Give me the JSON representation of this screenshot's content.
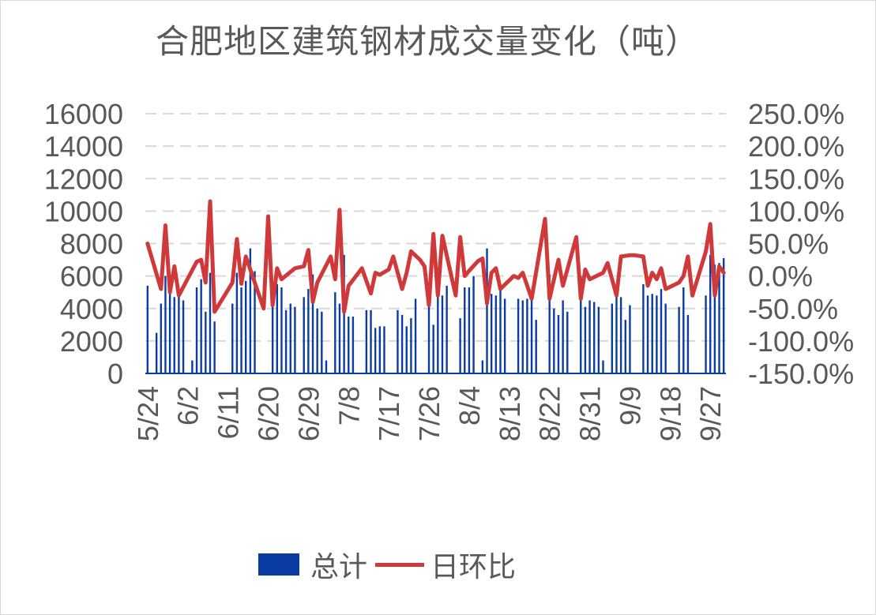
{
  "chart_data": {
    "type": "bar+line",
    "title": "合肥地区建筑钢材成交量变化（吨）",
    "left_axis": {
      "min": 0,
      "max": 16000,
      "ticks": [
        "0",
        "2000",
        "4000",
        "6000",
        "8000",
        "10000",
        "12000",
        "14000",
        "16000"
      ]
    },
    "right_axis": {
      "min": -1.5,
      "max": 2.5,
      "ticks": [
        "-150.0%",
        "-100.0%",
        "-50.0%",
        "0.0%",
        "50.0%",
        "100.0%",
        "150.0%",
        "200.0%",
        "250.0%"
      ]
    },
    "x_tick_labels": [
      "5/24",
      "6/2",
      "6/11",
      "6/20",
      "6/29",
      "7/8",
      "7/17",
      "7/26",
      "8/4",
      "8/13",
      "8/22",
      "8/31",
      "9/9",
      "9/18",
      "9/27"
    ],
    "x_start": "5/24",
    "legend_position": "bottom",
    "gridlines": "dashed, left-axis major ticks",
    "series": [
      {
        "name": "总计",
        "type": "bar",
        "axis": "left",
        "color": "#0b3ca4",
        "points": [
          [
            "5/24",
            5400
          ],
          [
            "5/26",
            2500
          ],
          [
            "5/27",
            4300
          ],
          [
            "5/28",
            6000
          ],
          [
            "5/29",
            5000
          ],
          [
            "5/30",
            4700
          ],
          [
            "5/31",
            5100
          ],
          [
            "6/1",
            4500
          ],
          [
            "6/3",
            800
          ],
          [
            "6/4",
            5300
          ],
          [
            "6/5",
            5800
          ],
          [
            "6/6",
            3800
          ],
          [
            "6/7",
            6200
          ],
          [
            "6/8",
            3200
          ],
          [
            "6/12",
            4300
          ],
          [
            "6/13",
            6200
          ],
          [
            "6/14",
            5300
          ],
          [
            "6/15",
            5700
          ],
          [
            "6/16",
            7700
          ],
          [
            "6/17",
            6300
          ],
          [
            "6/21",
            5400
          ],
          [
            "6/22",
            5500
          ],
          [
            "6/23",
            5300
          ],
          [
            "6/24",
            3900
          ],
          [
            "6/25",
            4300
          ],
          [
            "6/26",
            4100
          ],
          [
            "6/28",
            4700
          ],
          [
            "6/29",
            5200
          ],
          [
            "6/30",
            6100
          ],
          [
            "7/1",
            4000
          ],
          [
            "7/2",
            3800
          ],
          [
            "7/3",
            800
          ],
          [
            "7/5",
            5000
          ],
          [
            "7/6",
            4300
          ],
          [
            "7/7",
            7300
          ],
          [
            "7/8",
            3500
          ],
          [
            "7/9",
            3500
          ],
          [
            "7/12",
            3900
          ],
          [
            "7/13",
            3900
          ],
          [
            "7/14",
            2800
          ],
          [
            "7/15",
            2900
          ],
          [
            "7/16",
            2900
          ],
          [
            "7/19",
            3900
          ],
          [
            "7/20",
            3600
          ],
          [
            "7/21",
            2900
          ],
          [
            "7/22",
            3400
          ],
          [
            "7/23",
            4600
          ],
          [
            "7/26",
            5200
          ],
          [
            "7/27",
            3000
          ],
          [
            "7/28",
            6000
          ],
          [
            "7/29",
            4800
          ],
          [
            "7/30",
            5400
          ],
          [
            "8/2",
            3400
          ],
          [
            "8/3",
            5300
          ],
          [
            "8/4",
            5300
          ],
          [
            "8/5",
            6000
          ],
          [
            "8/7",
            800
          ],
          [
            "8/8",
            7700
          ],
          [
            "8/9",
            4900
          ],
          [
            "8/10",
            4800
          ],
          [
            "8/11",
            5300
          ],
          [
            "8/12",
            4600
          ],
          [
            "8/15",
            4600
          ],
          [
            "8/16",
            4500
          ],
          [
            "8/17",
            4600
          ],
          [
            "8/18",
            5000
          ],
          [
            "8/19",
            3300
          ],
          [
            "8/22",
            6100
          ],
          [
            "8/23",
            4000
          ],
          [
            "8/24",
            3600
          ],
          [
            "8/25",
            4500
          ],
          [
            "8/26",
            3800
          ],
          [
            "8/29",
            6000
          ],
          [
            "8/30",
            4100
          ],
          [
            "8/31",
            4500
          ],
          [
            "9/1",
            4400
          ],
          [
            "9/2",
            4100
          ],
          [
            "9/3",
            800
          ],
          [
            "9/5",
            4300
          ],
          [
            "9/6",
            5200
          ],
          [
            "9/7",
            4700
          ],
          [
            "9/8",
            3300
          ],
          [
            "9/9",
            4200
          ],
          [
            "9/12",
            5500
          ],
          [
            "9/13",
            4800
          ],
          [
            "9/14",
            4900
          ],
          [
            "9/15",
            4800
          ],
          [
            "9/16",
            5200
          ],
          [
            "9/17",
            4300
          ],
          [
            "9/20",
            4100
          ],
          [
            "9/21",
            5300
          ],
          [
            "9/22",
            3600
          ],
          [
            "9/26",
            4800
          ],
          [
            "9/27",
            7300
          ],
          [
            "9/28",
            6700
          ],
          [
            "9/29",
            6800
          ],
          [
            "9/30",
            7100
          ]
        ]
      },
      {
        "name": "日环比",
        "type": "line",
        "axis": "right",
        "color": "#d0393a",
        "points": [
          [
            "5/24",
            0.5
          ],
          [
            "5/27",
            -0.2
          ],
          [
            "5/28",
            0.78
          ],
          [
            "5/29",
            -0.25
          ],
          [
            "5/30",
            0.15
          ],
          [
            "5/31",
            -0.3
          ],
          [
            "6/4",
            0.22
          ],
          [
            "6/5",
            0.25
          ],
          [
            "6/6",
            -0.1
          ],
          [
            "6/7",
            1.15
          ],
          [
            "6/8",
            -0.55
          ],
          [
            "6/12",
            -0.1
          ],
          [
            "6/13",
            0.57
          ],
          [
            "6/14",
            -0.12
          ],
          [
            "6/15",
            0.3
          ],
          [
            "6/16",
            0.1
          ],
          [
            "6/17",
            -0.1
          ],
          [
            "6/19",
            -0.5
          ],
          [
            "6/20",
            0.92
          ],
          [
            "6/21",
            -0.45
          ],
          [
            "6/22",
            0.12
          ],
          [
            "6/23",
            -0.05
          ],
          [
            "6/26",
            0.12
          ],
          [
            "6/28",
            0.15
          ],
          [
            "6/29",
            0.4
          ],
          [
            "6/30",
            -0.4
          ],
          [
            "7/1",
            -0.1
          ],
          [
            "7/4",
            0.3
          ],
          [
            "7/5",
            -0.05
          ],
          [
            "7/6",
            1.02
          ],
          [
            "7/7",
            -0.55
          ],
          [
            "7/8",
            -0.15
          ],
          [
            "7/11",
            0.12
          ],
          [
            "7/13",
            -0.27
          ],
          [
            "7/14",
            0.05
          ],
          [
            "7/15",
            0.02
          ],
          [
            "7/17",
            0.1
          ],
          [
            "7/18",
            0.3
          ],
          [
            "7/20",
            -0.2
          ],
          [
            "7/21",
            0.05
          ],
          [
            "7/22",
            0.38
          ],
          [
            "7/24",
            0.25
          ],
          [
            "7/25",
            0.15
          ],
          [
            "7/26",
            -0.45
          ],
          [
            "7/27",
            0.65
          ],
          [
            "7/28",
            -0.3
          ],
          [
            "7/29",
            0.62
          ],
          [
            "8/1",
            -0.3
          ],
          [
            "8/2",
            0.6
          ],
          [
            "8/3",
            0.0
          ],
          [
            "8/4",
            0.08
          ],
          [
            "8/6",
            0.23
          ],
          [
            "8/7",
            0.27
          ],
          [
            "8/8",
            -0.42
          ],
          [
            "8/9",
            0.05
          ],
          [
            "8/10",
            0.12
          ],
          [
            "8/11",
            -0.2
          ],
          [
            "8/14",
            0.0
          ],
          [
            "8/15",
            -0.03
          ],
          [
            "8/16",
            0.05
          ],
          [
            "8/18",
            -0.35
          ],
          [
            "8/21",
            0.88
          ],
          [
            "8/22",
            -0.35
          ],
          [
            "8/24",
            0.25
          ],
          [
            "8/25",
            -0.15
          ],
          [
            "8/28",
            0.6
          ],
          [
            "8/29",
            -0.35
          ],
          [
            "8/30",
            0.1
          ],
          [
            "8/31",
            -0.05
          ],
          [
            "9/3",
            0.05
          ],
          [
            "9/4",
            0.2
          ],
          [
            "9/6",
            -0.3
          ],
          [
            "9/7",
            0.3
          ],
          [
            "9/9",
            0.32
          ],
          [
            "9/10",
            0.32
          ],
          [
            "9/12",
            0.3
          ],
          [
            "9/13",
            -0.15
          ],
          [
            "9/14",
            0.05
          ],
          [
            "9/15",
            -0.05
          ],
          [
            "9/16",
            0.12
          ],
          [
            "9/17",
            -0.2
          ],
          [
            "9/20",
            -0.1
          ],
          [
            "9/21",
            0.0
          ],
          [
            "9/22",
            0.3
          ],
          [
            "9/23",
            -0.3
          ],
          [
            "9/26",
            0.38
          ],
          [
            "9/27",
            0.8
          ],
          [
            "9/28",
            -0.3
          ],
          [
            "9/29",
            0.15
          ],
          [
            "9/30",
            0.05
          ]
        ]
      }
    ]
  }
}
